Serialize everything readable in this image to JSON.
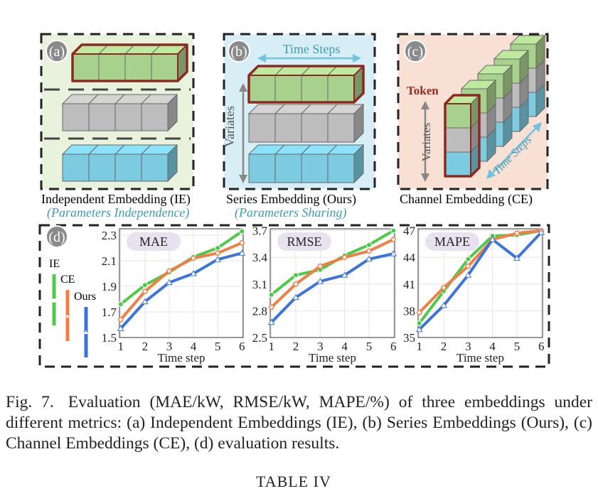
{
  "panels": {
    "a": {
      "letter": "(a)",
      "name": "Independent Embedding (IE)",
      "sub": "(Parameters Independence)"
    },
    "b": {
      "letter": "(b)",
      "name": "Series Embedding (Ours)",
      "sub": "(Parameters Sharing)",
      "top_label": "Time Steps",
      "side_label": "Variates"
    },
    "c": {
      "letter": "(c)",
      "name": "Channel Embedding (CE)",
      "token_label": "Token",
      "side_label": "Variates",
      "diag_label": "Time Steps"
    },
    "d": {
      "letter": "(d)",
      "legend": [
        "IE",
        "CE",
        "Ours"
      ],
      "xlabel": "Time step"
    }
  },
  "colors": {
    "IE": "#4ec94a",
    "CE": "#f07f45",
    "Ours": "#3d74d9",
    "green_box": "#a9d18e",
    "gray_box": "#bdbdbd",
    "blue_box": "#7ccbe0",
    "token_border": "#8b2a23"
  },
  "chart_data": [
    {
      "type": "line",
      "title": "MAE",
      "xlabel": "Time step",
      "x": [
        1,
        2,
        3,
        4,
        5,
        6
      ],
      "yticks": [
        "1.5",
        "1.7",
        "1.9",
        "2.1",
        "2.3"
      ],
      "ylim": [
        1.5,
        2.35
      ],
      "grid": true,
      "series": [
        {
          "name": "IE",
          "values": [
            1.76,
            1.91,
            2.01,
            2.13,
            2.2,
            2.33
          ]
        },
        {
          "name": "CE",
          "values": [
            1.64,
            1.86,
            2.02,
            2.12,
            2.16,
            2.24
          ]
        },
        {
          "name": "Ours",
          "values": [
            1.57,
            1.78,
            1.93,
            2.0,
            2.11,
            2.16
          ]
        }
      ]
    },
    {
      "type": "line",
      "title": "RMSE",
      "xlabel": "Time step",
      "x": [
        1,
        2,
        3,
        4,
        5,
        6
      ],
      "yticks": [
        "2.5",
        "2.8",
        "3.1",
        "3.4",
        "3.7"
      ],
      "ylim": [
        2.5,
        3.72
      ],
      "grid": true,
      "series": [
        {
          "name": "IE",
          "values": [
            2.98,
            3.2,
            3.26,
            3.42,
            3.54,
            3.7
          ]
        },
        {
          "name": "CE",
          "values": [
            2.84,
            3.1,
            3.3,
            3.4,
            3.47,
            3.6
          ]
        },
        {
          "name": "Ours",
          "values": [
            2.67,
            2.95,
            3.13,
            3.2,
            3.38,
            3.44
          ]
        }
      ]
    },
    {
      "type": "line",
      "title": "MAPE",
      "xlabel": "Time step",
      "x": [
        1,
        2,
        3,
        4,
        5,
        6
      ],
      "yticks": [
        "35",
        "38",
        "41",
        "44",
        "47"
      ],
      "ylim": [
        35,
        47.2
      ],
      "grid": true,
      "series": [
        {
          "name": "IE",
          "values": [
            36.6,
            40.2,
            43.8,
            46.4,
            46.5,
            47.0
          ]
        },
        {
          "name": "CE",
          "values": [
            37.8,
            40.6,
            43.0,
            46.0,
            46.7,
            47.0
          ]
        },
        {
          "name": "Ours",
          "values": [
            35.9,
            38.6,
            42.0,
            46.0,
            43.9,
            46.8
          ]
        }
      ]
    }
  ],
  "caption": {
    "label": "Fig. 7.",
    "text": "Evaluation (MAE/kW, RMSE/kW, MAPE/%) of three embeddings under different metrics: (a) Independent Embeddings (IE), (b) Series Embeddings (Ours), (c) Channel Embeddings (CE), (d) evaluation results."
  },
  "next_title": "TABLE IV"
}
